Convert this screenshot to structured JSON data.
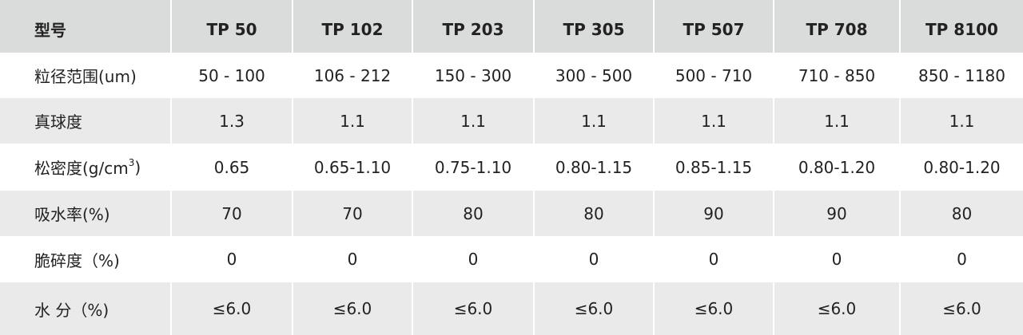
{
  "table": {
    "header": {
      "label": "型号",
      "values": [
        "TP 50",
        "TP 102",
        "TP 203",
        "TP 305",
        "TP 507",
        "TP 708",
        "TP 8100"
      ]
    },
    "rows": [
      {
        "label": "粒径范围(um)",
        "values": [
          "50 - 100",
          "106 - 212",
          "150 -  300",
          "300 - 500",
          "500 - 710",
          "710 - 850",
          "850 - 1180"
        ]
      },
      {
        "label": "真球度",
        "values": [
          "1.3",
          "1.1",
          "1.1",
          "1.1",
          "1.1",
          "1.1",
          "1.1"
        ]
      },
      {
        "label_main": "松密度(g/cm",
        "label_sup": "3",
        "label_tail": ")",
        "values": [
          "0.65",
          "0.65-1.10",
          "0.75-1.10",
          "0.80-1.15",
          "0.85-1.15",
          "0.80-1.20",
          "0.80-1.20"
        ]
      },
      {
        "label": "吸水率(%)",
        "values": [
          "70",
          "70",
          "80",
          "80",
          "90",
          "90",
          "80"
        ]
      },
      {
        "label": "脆碎度（%)",
        "values": [
          "0",
          "0",
          "0",
          "0",
          "0",
          "0",
          "0"
        ]
      },
      {
        "label": "水 分（%)",
        "values": [
          "≤6.0",
          "≤6.0",
          "≤6.0",
          "≤6.0",
          "≤6.0",
          "≤6.0",
          "≤6.0"
        ]
      }
    ]
  },
  "colors": {
    "header_bg": "#dadbdb",
    "shaded_row_bg": "#eaeaea",
    "plain_row_bg": "#ffffff",
    "text": "#222222"
  }
}
